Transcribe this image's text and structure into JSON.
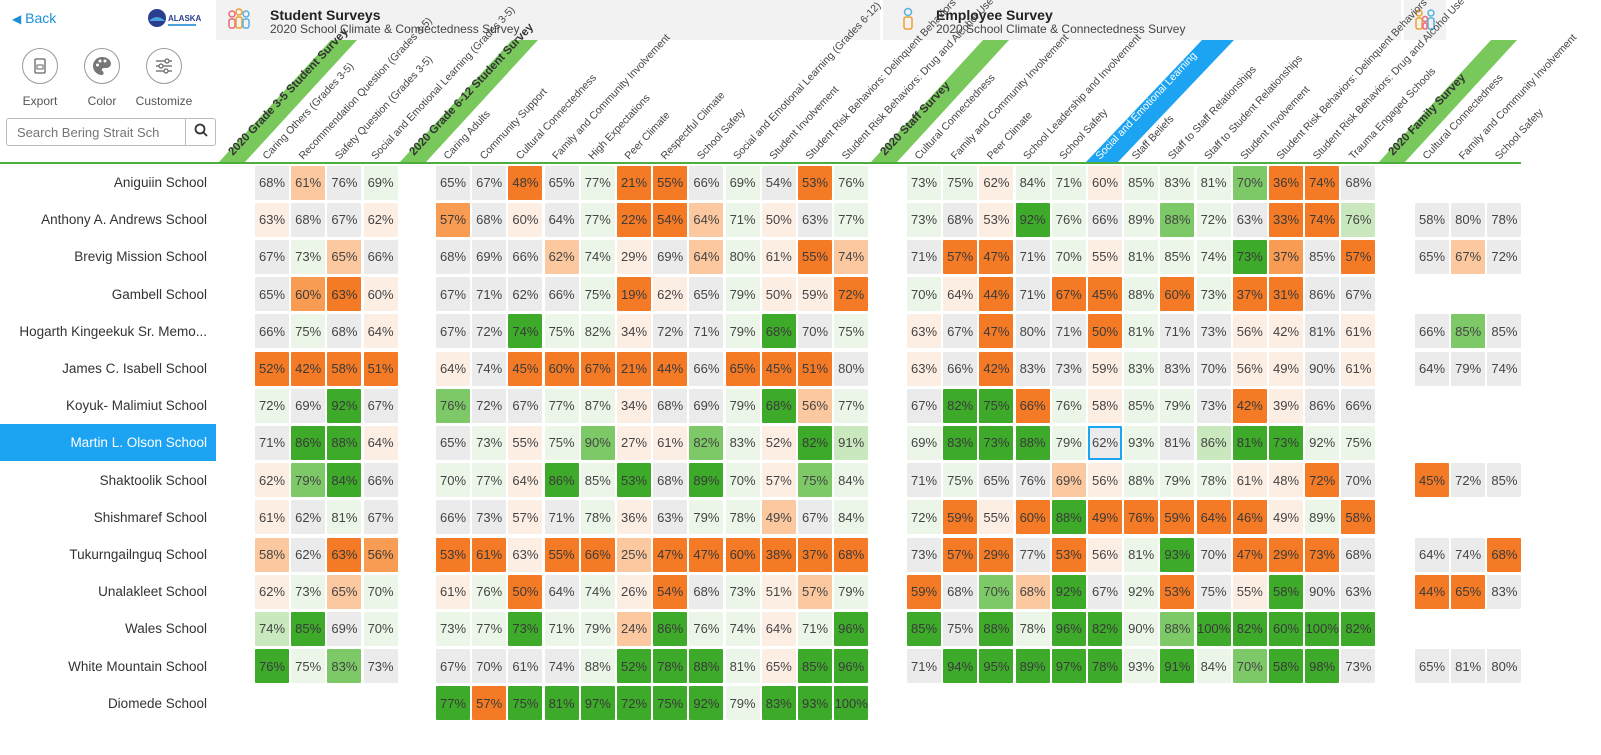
{
  "topbar": {
    "back_label": "Back",
    "logo_text": "ALASKA",
    "sections": [
      {
        "title": "Student Surveys",
        "subtitle": "2020 School Climate & Connectedness Survey"
      },
      {
        "title": "Employee Survey",
        "subtitle": "2020 School Climate & Connectedness Survey"
      }
    ]
  },
  "toolbar": {
    "export_label": "Export",
    "color_label": "Color",
    "customize_label": "Customize"
  },
  "search": {
    "placeholder": "Search Bering Strait Sch"
  },
  "colors": {
    "green_dark": "#3daa2a",
    "green_mid": "#7dc967",
    "green_light": "#c9e8bd",
    "green_pale": "#ecf6e8",
    "neutral": "#ebebeb",
    "orange_pale": "#fdeee3",
    "orange_light": "#fbc89f",
    "orange_mid": "#f89b53",
    "orange_dark": "#f47a25",
    "selected": "#1ca3f2",
    "header_green": "#79c85c"
  },
  "column_groups": [
    {
      "survey": "2020 Grade 3-5 Student Survey",
      "columns": [
        "Caring Others (Grades 3-5)",
        "Recommendation Question (Grades 3-5)",
        "Safety Question (Grades 3-5)",
        "Social and Emotional Learning (Grades 3-5)"
      ]
    },
    {
      "survey": "2020 Grade 6-12 Student Survey",
      "columns": [
        "Caring Adults",
        "Community Support",
        "Cultural Connectedness",
        "Family and Community Involvement",
        "High Expectations",
        "Peer Climate",
        "Respectful Climate",
        "School Safety",
        "Social and Emotional Learning (Grades 6-12)",
        "Student Involvement",
        "Student Risk Behaviors: Delinquent Behaviors",
        "Student Risk Behaviors: Drug and Alcohol Use"
      ]
    },
    {
      "survey": "2020 Staff Survey",
      "columns": [
        "Cultural Connectedness",
        "Family and Community Involvement",
        "Peer Climate",
        "School Leadership and Involvement",
        "School Safety",
        "Social and Emotional Learning",
        "Staff Beliefs",
        "Staff to Staff Relationships",
        "Staff to Student Relationships",
        "Student Involvement",
        "Student Risk Behaviors: Delinquent Behaviors",
        "Student Risk Behaviors: Drug and Alcohol Use",
        "Trauma Engaged Schools"
      ]
    },
    {
      "survey": "2020 Family Survey",
      "columns": [
        "Cultural Connectedness",
        "Family and Community Involvement",
        "School Safety"
      ]
    }
  ],
  "selected_school_index": 7,
  "highlighted_column_label": "Social and Emotional Learning",
  "rows": [
    {
      "school": "Aniguiin School",
      "values": [
        "68%",
        "61%",
        "76%",
        "69%",
        "65%",
        "67%",
        "48%",
        "65%",
        "77%",
        "21%",
        "55%",
        "66%",
        "69%",
        "54%",
        "53%",
        "76%",
        "73%",
        "75%",
        "62%",
        "84%",
        "71%",
        "60%",
        "85%",
        "83%",
        "81%",
        "70%",
        "36%",
        "74%",
        "68%",
        "",
        "",
        ""
      ]
    },
    {
      "school": "Anthony A. Andrews School",
      "values": [
        "63%",
        "68%",
        "67%",
        "62%",
        "57%",
        "68%",
        "60%",
        "64%",
        "77%",
        "22%",
        "54%",
        "64%",
        "71%",
        "50%",
        "63%",
        "77%",
        "73%",
        "68%",
        "53%",
        "92%",
        "76%",
        "66%",
        "89%",
        "88%",
        "72%",
        "63%",
        "33%",
        "74%",
        "76%",
        "58%",
        "80%",
        "78%"
      ]
    },
    {
      "school": "Brevig Mission School",
      "values": [
        "67%",
        "73%",
        "65%",
        "66%",
        "68%",
        "69%",
        "66%",
        "62%",
        "74%",
        "29%",
        "69%",
        "64%",
        "80%",
        "61%",
        "55%",
        "74%",
        "71%",
        "57%",
        "47%",
        "71%",
        "70%",
        "55%",
        "81%",
        "85%",
        "74%",
        "73%",
        "37%",
        "85%",
        "57%",
        "65%",
        "67%",
        "72%"
      ]
    },
    {
      "school": "Gambell School",
      "values": [
        "65%",
        "60%",
        "63%",
        "60%",
        "67%",
        "71%",
        "62%",
        "66%",
        "75%",
        "19%",
        "62%",
        "65%",
        "79%",
        "50%",
        "59%",
        "72%",
        "70%",
        "64%",
        "44%",
        "71%",
        "67%",
        "45%",
        "88%",
        "60%",
        "73%",
        "37%",
        "31%",
        "86%",
        "67%",
        "",
        "",
        ""
      ]
    },
    {
      "school": "Hogarth Kingeekuk Sr. Memo...",
      "values": [
        "66%",
        "75%",
        "68%",
        "64%",
        "67%",
        "72%",
        "74%",
        "75%",
        "82%",
        "34%",
        "72%",
        "71%",
        "79%",
        "68%",
        "70%",
        "75%",
        "63%",
        "67%",
        "47%",
        "80%",
        "71%",
        "50%",
        "81%",
        "71%",
        "73%",
        "56%",
        "42%",
        "81%",
        "61%",
        "66%",
        "85%",
        "85%"
      ]
    },
    {
      "school": "James C. Isabell School",
      "values": [
        "52%",
        "42%",
        "58%",
        "51%",
        "64%",
        "74%",
        "45%",
        "60%",
        "67%",
        "21%",
        "44%",
        "66%",
        "65%",
        "45%",
        "51%",
        "80%",
        "63%",
        "66%",
        "42%",
        "83%",
        "73%",
        "59%",
        "83%",
        "83%",
        "70%",
        "56%",
        "49%",
        "90%",
        "61%",
        "64%",
        "79%",
        "74%"
      ]
    },
    {
      "school": "Koyuk- Malimiut School",
      "values": [
        "72%",
        "69%",
        "92%",
        "67%",
        "76%",
        "72%",
        "67%",
        "77%",
        "87%",
        "34%",
        "68%",
        "69%",
        "79%",
        "68%",
        "56%",
        "77%",
        "67%",
        "82%",
        "75%",
        "66%",
        "76%",
        "58%",
        "85%",
        "79%",
        "73%",
        "42%",
        "39%",
        "86%",
        "66%",
        "",
        "",
        ""
      ]
    },
    {
      "school": "Martin L. Olson School",
      "values": [
        "71%",
        "86%",
        "88%",
        "64%",
        "65%",
        "73%",
        "55%",
        "75%",
        "90%",
        "27%",
        "61%",
        "82%",
        "83%",
        "52%",
        "82%",
        "91%",
        "69%",
        "83%",
        "73%",
        "88%",
        "79%",
        "62%",
        "93%",
        "81%",
        "86%",
        "81%",
        "73%",
        "92%",
        "75%",
        "",
        "",
        ""
      ]
    },
    {
      "school": "Shaktoolik School",
      "values": [
        "62%",
        "79%",
        "84%",
        "66%",
        "70%",
        "77%",
        "64%",
        "86%",
        "85%",
        "53%",
        "68%",
        "89%",
        "70%",
        "57%",
        "75%",
        "84%",
        "71%",
        "75%",
        "65%",
        "76%",
        "69%",
        "56%",
        "88%",
        "79%",
        "78%",
        "61%",
        "48%",
        "72%",
        "70%",
        "45%",
        "72%",
        "85%"
      ]
    },
    {
      "school": "Shishmaref School",
      "values": [
        "61%",
        "62%",
        "81%",
        "67%",
        "66%",
        "73%",
        "57%",
        "71%",
        "78%",
        "36%",
        "63%",
        "79%",
        "78%",
        "49%",
        "67%",
        "84%",
        "72%",
        "59%",
        "55%",
        "60%",
        "88%",
        "49%",
        "76%",
        "59%",
        "64%",
        "46%",
        "49%",
        "89%",
        "58%",
        "",
        "",
        ""
      ]
    },
    {
      "school": "Tukurngailnguq School",
      "values": [
        "58%",
        "62%",
        "63%",
        "56%",
        "53%",
        "61%",
        "63%",
        "55%",
        "66%",
        "25%",
        "47%",
        "47%",
        "60%",
        "38%",
        "37%",
        "68%",
        "73%",
        "57%",
        "29%",
        "77%",
        "53%",
        "56%",
        "81%",
        "93%",
        "70%",
        "47%",
        "29%",
        "73%",
        "68%",
        "64%",
        "74%",
        "68%"
      ]
    },
    {
      "school": "Unalakleet School",
      "values": [
        "62%",
        "73%",
        "65%",
        "70%",
        "61%",
        "76%",
        "50%",
        "64%",
        "74%",
        "26%",
        "54%",
        "68%",
        "73%",
        "51%",
        "57%",
        "79%",
        "59%",
        "68%",
        "70%",
        "68%",
        "92%",
        "67%",
        "92%",
        "53%",
        "75%",
        "55%",
        "58%",
        "90%",
        "63%",
        "44%",
        "65%",
        "83%"
      ]
    },
    {
      "school": "Wales School",
      "values": [
        "74%",
        "85%",
        "69%",
        "70%",
        "73%",
        "77%",
        "73%",
        "71%",
        "79%",
        "24%",
        "86%",
        "76%",
        "74%",
        "64%",
        "71%",
        "96%",
        "85%",
        "75%",
        "88%",
        "78%",
        "96%",
        "82%",
        "90%",
        "88%",
        "100%",
        "82%",
        "60%",
        "100%",
        "82%",
        "",
        "",
        ""
      ]
    },
    {
      "school": "White Mountain School",
      "values": [
        "76%",
        "75%",
        "83%",
        "73%",
        "67%",
        "70%",
        "61%",
        "74%",
        "88%",
        "52%",
        "78%",
        "88%",
        "81%",
        "65%",
        "85%",
        "96%",
        "71%",
        "94%",
        "95%",
        "89%",
        "97%",
        "78%",
        "93%",
        "91%",
        "84%",
        "70%",
        "58%",
        "98%",
        "73%",
        "65%",
        "81%",
        "80%"
      ]
    },
    {
      "school": "Diomede School",
      "values": [
        "",
        "",
        "",
        "",
        "77%",
        "57%",
        "75%",
        "81%",
        "97%",
        "72%",
        "75%",
        "92%",
        "79%",
        "83%",
        "93%",
        "100%",
        "",
        "",
        "",
        "",
        "",
        "",
        "",
        "",
        "",
        "",
        "",
        "",
        "",
        "",
        "",
        ""
      ]
    }
  ],
  "cell_levels": [
    [
      "n",
      "ol",
      "n",
      "gp",
      "n",
      "n",
      "od",
      "n",
      "gp",
      "od",
      "od",
      "n",
      "gp",
      "n",
      "od",
      "gp",
      "gp",
      "gp",
      "op",
      "gp",
      "gp",
      "op",
      "gp",
      "gp",
      "gp",
      "gm",
      "od",
      "od",
      "n",
      "",
      "",
      ""
    ],
    [
      "op",
      "n",
      "n",
      "op",
      "om",
      "n",
      "op",
      "n",
      "gp",
      "od",
      "od",
      "ol",
      "gp",
      "op",
      "n",
      "gp",
      "gp",
      "n",
      "op",
      "gd",
      "gp",
      "n",
      "gp",
      "gm",
      "gp",
      "n",
      "od",
      "od",
      "gl",
      "n",
      "n",
      "n"
    ],
    [
      "n",
      "gp",
      "ol",
      "n",
      "n",
      "n",
      "n",
      "ol",
      "gp",
      "op",
      "n",
      "ol",
      "gp",
      "op",
      "od",
      "ol",
      "n",
      "od",
      "od",
      "n",
      "gp",
      "op",
      "gp",
      "gp",
      "gp",
      "gd",
      "om",
      "n",
      "od",
      "n",
      "ol",
      "n"
    ],
    [
      "n",
      "om",
      "od",
      "op",
      "n",
      "n",
      "n",
      "n",
      "gp",
      "od",
      "op",
      "n",
      "gp",
      "op",
      "op",
      "od",
      "gp",
      "op",
      "od",
      "n",
      "od",
      "od",
      "gp",
      "od",
      "gp",
      "od",
      "od",
      "n",
      "n",
      "",
      "",
      ""
    ],
    [
      "n",
      "gp",
      "n",
      "op",
      "n",
      "n",
      "gd",
      "gp",
      "gp",
      "op",
      "n",
      "n",
      "gp",
      "gd",
      "n",
      "gp",
      "op",
      "n",
      "od",
      "n",
      "n",
      "od",
      "gp",
      "n",
      "n",
      "op",
      "op",
      "n",
      "op",
      "n",
      "gm",
      "n"
    ],
    [
      "od",
      "od",
      "od",
      "od",
      "op",
      "n",
      "od",
      "od",
      "od",
      "od",
      "od",
      "n",
      "od",
      "od",
      "od",
      "n",
      "op",
      "n",
      "od",
      "n",
      "n",
      "op",
      "gp",
      "n",
      "n",
      "op",
      "op",
      "n",
      "op",
      "n",
      "n",
      "n"
    ],
    [
      "gp",
      "n",
      "gd",
      "n",
      "gm",
      "n",
      "n",
      "gp",
      "gp",
      "op",
      "n",
      "n",
      "gp",
      "gd",
      "ol",
      "gp",
      "n",
      "gd",
      "gd",
      "od",
      "gp",
      "op",
      "gp",
      "gp",
      "n",
      "od",
      "op",
      "n",
      "n",
      "",
      "",
      ""
    ],
    [
      "n",
      "gd",
      "gd",
      "op",
      "n",
      "gp",
      "op",
      "gp",
      "gm",
      "op",
      "op",
      "gm",
      "gp",
      "op",
      "gd",
      "gl",
      "gp",
      "gd",
      "gd",
      "gd",
      "gp",
      "n",
      "gp",
      "n",
      "gl",
      "gd",
      "gd",
      "gp",
      "gp",
      "",
      "",
      ""
    ],
    [
      "op",
      "gm",
      "gd",
      "n",
      "gp",
      "gp",
      "op",
      "gd",
      "gp",
      "gd",
      "n",
      "gd",
      "gp",
      "op",
      "gm",
      "gp",
      "n",
      "gp",
      "n",
      "n",
      "ol",
      "op",
      "gp",
      "gp",
      "gp",
      "op",
      "op",
      "od",
      "n",
      "od",
      "n",
      "n"
    ],
    [
      "op",
      "n",
      "gp",
      "n",
      "n",
      "n",
      "op",
      "n",
      "gp",
      "op",
      "n",
      "gp",
      "gp",
      "ol",
      "n",
      "gp",
      "gp",
      "od",
      "op",
      "od",
      "gd",
      "od",
      "od",
      "od",
      "od",
      "od",
      "op",
      "gp",
      "od",
      "",
      "",
      ""
    ],
    [
      "ol",
      "n",
      "od",
      "om",
      "od",
      "od",
      "op",
      "od",
      "od",
      "ol",
      "od",
      "od",
      "od",
      "od",
      "od",
      "od",
      "n",
      "od",
      "od",
      "n",
      "od",
      "op",
      "gp",
      "gd",
      "n",
      "od",
      "od",
      "od",
      "n",
      "n",
      "n",
      "od"
    ],
    [
      "op",
      "gp",
      "ol",
      "gp",
      "op",
      "gp",
      "od",
      "n",
      "gp",
      "op",
      "od",
      "n",
      "gp",
      "op",
      "ol",
      "gp",
      "od",
      "n",
      "gm",
      "ol",
      "gd",
      "n",
      "gp",
      "od",
      "n",
      "op",
      "gd",
      "n",
      "n",
      "od",
      "od",
      "n"
    ],
    [
      "gl",
      "gd",
      "n",
      "gp",
      "gp",
      "gp",
      "gd",
      "gp",
      "gp",
      "ol",
      "gd",
      "gp",
      "gp",
      "op",
      "gp",
      "gd",
      "gd",
      "n",
      "gd",
      "gp",
      "gd",
      "gd",
      "gp",
      "gm",
      "gd",
      "gd",
      "gd",
      "gd",
      "gd",
      "",
      "",
      ""
    ],
    [
      "gd",
      "gp",
      "gm",
      "n",
      "n",
      "n",
      "n",
      "n",
      "gp",
      "gd",
      "gd",
      "gd",
      "gp",
      "op",
      "gd",
      "gd",
      "n",
      "gd",
      "gd",
      "gd",
      "gd",
      "gd",
      "gp",
      "gd",
      "gp",
      "gm",
      "gd",
      "gd",
      "n",
      "n",
      "n",
      "n"
    ],
    [
      "",
      "",
      "",
      "",
      "gd",
      "od",
      "gd",
      "gd",
      "gd",
      "gd",
      "gd",
      "gd",
      "gp",
      "gd",
      "gd",
      "gd",
      "",
      "",
      "",
      "",
      "",
      "",
      "",
      "",
      "",
      "",
      "",
      "",
      "",
      "",
      "",
      ""
    ]
  ]
}
